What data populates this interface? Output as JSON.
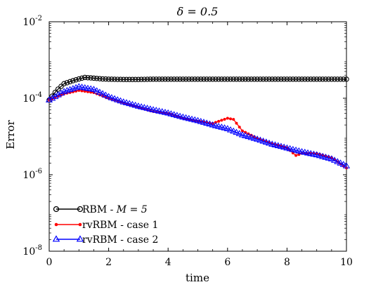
{
  "chart_data": {
    "type": "line",
    "title": "δ = 0.5",
    "xlabel": "time",
    "ylabel": "Error",
    "xlim": [
      0,
      10
    ],
    "ylim": [
      1e-08,
      0.01
    ],
    "yscale": "log",
    "x_ticks": [
      "0",
      "2",
      "4",
      "6",
      "8",
      "10"
    ],
    "y_ticks": [
      {
        "base": "10",
        "exp": "-8",
        "value": 1e-08
      },
      {
        "base": "10",
        "exp": "-6",
        "value": 1e-06
      },
      {
        "base": "10",
        "exp": "-4",
        "value": 0.0001
      },
      {
        "base": "10",
        "exp": "-2",
        "value": 0.01
      }
    ],
    "grid": false,
    "legend_position": "bottom-left",
    "series": [
      {
        "name": "RBM - M = 5",
        "legend_prefix": "RBM - ",
        "legend_math": "M = 5",
        "color": "#000000",
        "marker": "circle-open",
        "x": [
          0,
          0.25,
          0.5,
          0.75,
          1.0,
          1.2,
          1.4,
          1.6,
          1.8,
          2.0,
          2.5,
          3.0,
          3.5,
          4.0,
          5.0,
          6.0,
          7.0,
          8.0,
          9.0,
          10.0
        ],
        "y": [
          9e-05,
          0.00016,
          0.00024,
          0.00028,
          0.00032,
          0.00035,
          0.00034,
          0.00033,
          0.00032,
          0.000315,
          0.00031,
          0.00031,
          0.000315,
          0.000315,
          0.000315,
          0.000315,
          0.000315,
          0.000315,
          0.000315,
          0.000315
        ]
      },
      {
        "name": "rvRBM - case 1",
        "legend_prefix": "rvRBM - case 1",
        "legend_math": "",
        "color": "#ff0000",
        "marker": "dot",
        "x": [
          0,
          0.5,
          1.0,
          1.5,
          2.0,
          2.5,
          3.0,
          3.5,
          4.0,
          4.5,
          5.0,
          5.5,
          6.0,
          6.2,
          6.5,
          7.0,
          7.5,
          8.0,
          8.3,
          8.5,
          9.0,
          9.5,
          10.0
        ],
        "y": [
          9e-05,
          0.00013,
          0.00016,
          0.00014,
          0.0001,
          7.5e-05,
          5.8e-05,
          4.5e-05,
          4e-05,
          3e-05,
          2.5e-05,
          2.2e-05,
          3e-05,
          2.8e-05,
          1.4e-05,
          9e-06,
          6.5e-06,
          5e-06,
          3.2e-06,
          3.6e-06,
          3.6e-06,
          2.8e-06,
          1.5e-06
        ]
      },
      {
        "name": "rvRBM - case 2",
        "legend_prefix": "rvRBM - case 2",
        "legend_math": "",
        "color": "#0000ff",
        "marker": "triangle-open",
        "x": [
          0,
          0.5,
          1.0,
          1.5,
          2.0,
          2.5,
          3.0,
          3.5,
          4.0,
          4.5,
          5.0,
          5.5,
          6.0,
          6.5,
          7.0,
          7.5,
          8.0,
          8.5,
          9.0,
          9.5,
          10.0
        ],
        "y": [
          9e-05,
          0.00015,
          0.0002,
          0.00017,
          0.00011,
          8e-05,
          6.2e-05,
          5e-05,
          4.1e-05,
          3.2e-05,
          2.6e-05,
          2e-05,
          1.6e-05,
          1.1e-05,
          8.5e-06,
          6.3e-06,
          5e-06,
          4e-06,
          3.3e-06,
          2.6e-06,
          1.7e-06
        ]
      }
    ]
  }
}
